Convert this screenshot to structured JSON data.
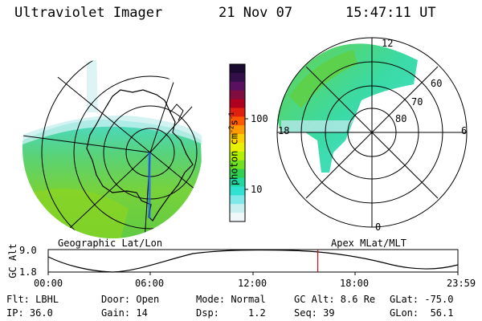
{
  "header": {
    "title": "Ultraviolet Imager",
    "date": "21 Nov 07",
    "time": "15:47:11 UT"
  },
  "left_panel": {
    "caption": "Geographic Lat/Lon"
  },
  "right_panel": {
    "caption": "Apex MLat/MLT",
    "mlt_labels": [
      "12",
      "18",
      "6",
      "0"
    ],
    "lat_labels": [
      "60",
      "70",
      "80"
    ]
  },
  "colorbar": {
    "label": "photon cm",
    "label_sup1": "-2",
    "label_mid": "s",
    "label_sup2": "-1",
    "ticks": [
      "100",
      "10"
    ],
    "colors": [
      "#1a0a30",
      "#33104a",
      "#5a1060",
      "#800c40",
      "#b00020",
      "#e02010",
      "#ff5a00",
      "#ff9a00",
      "#ffd000",
      "#e8f000",
      "#b0f000",
      "#70e020",
      "#30d050",
      "#20d8a0",
      "#30e0d0",
      "#80e8e8",
      "#c8f0f0",
      "#f0f8f8"
    ]
  },
  "timeline": {
    "axis_label": "GC Alt",
    "ymax": "9.0",
    "ymin": "1.8",
    "ticks": [
      "00:00",
      "06:00",
      "12:00",
      "18:00",
      "23:59"
    ],
    "current_fraction": 0.658
  },
  "info": {
    "flt": "Flt: LBHL",
    "ip": "IP: 36.0",
    "door": "Door: Open",
    "gain": "Gain: 14",
    "mode": "Mode: Normal",
    "dsp": "Dsp:     1.2",
    "gcalt": "GC Alt: 8.6 Re",
    "seq": "Seq: 39",
    "glat": "GLat: -75.0",
    "glon": "GLon:  56.1"
  }
}
